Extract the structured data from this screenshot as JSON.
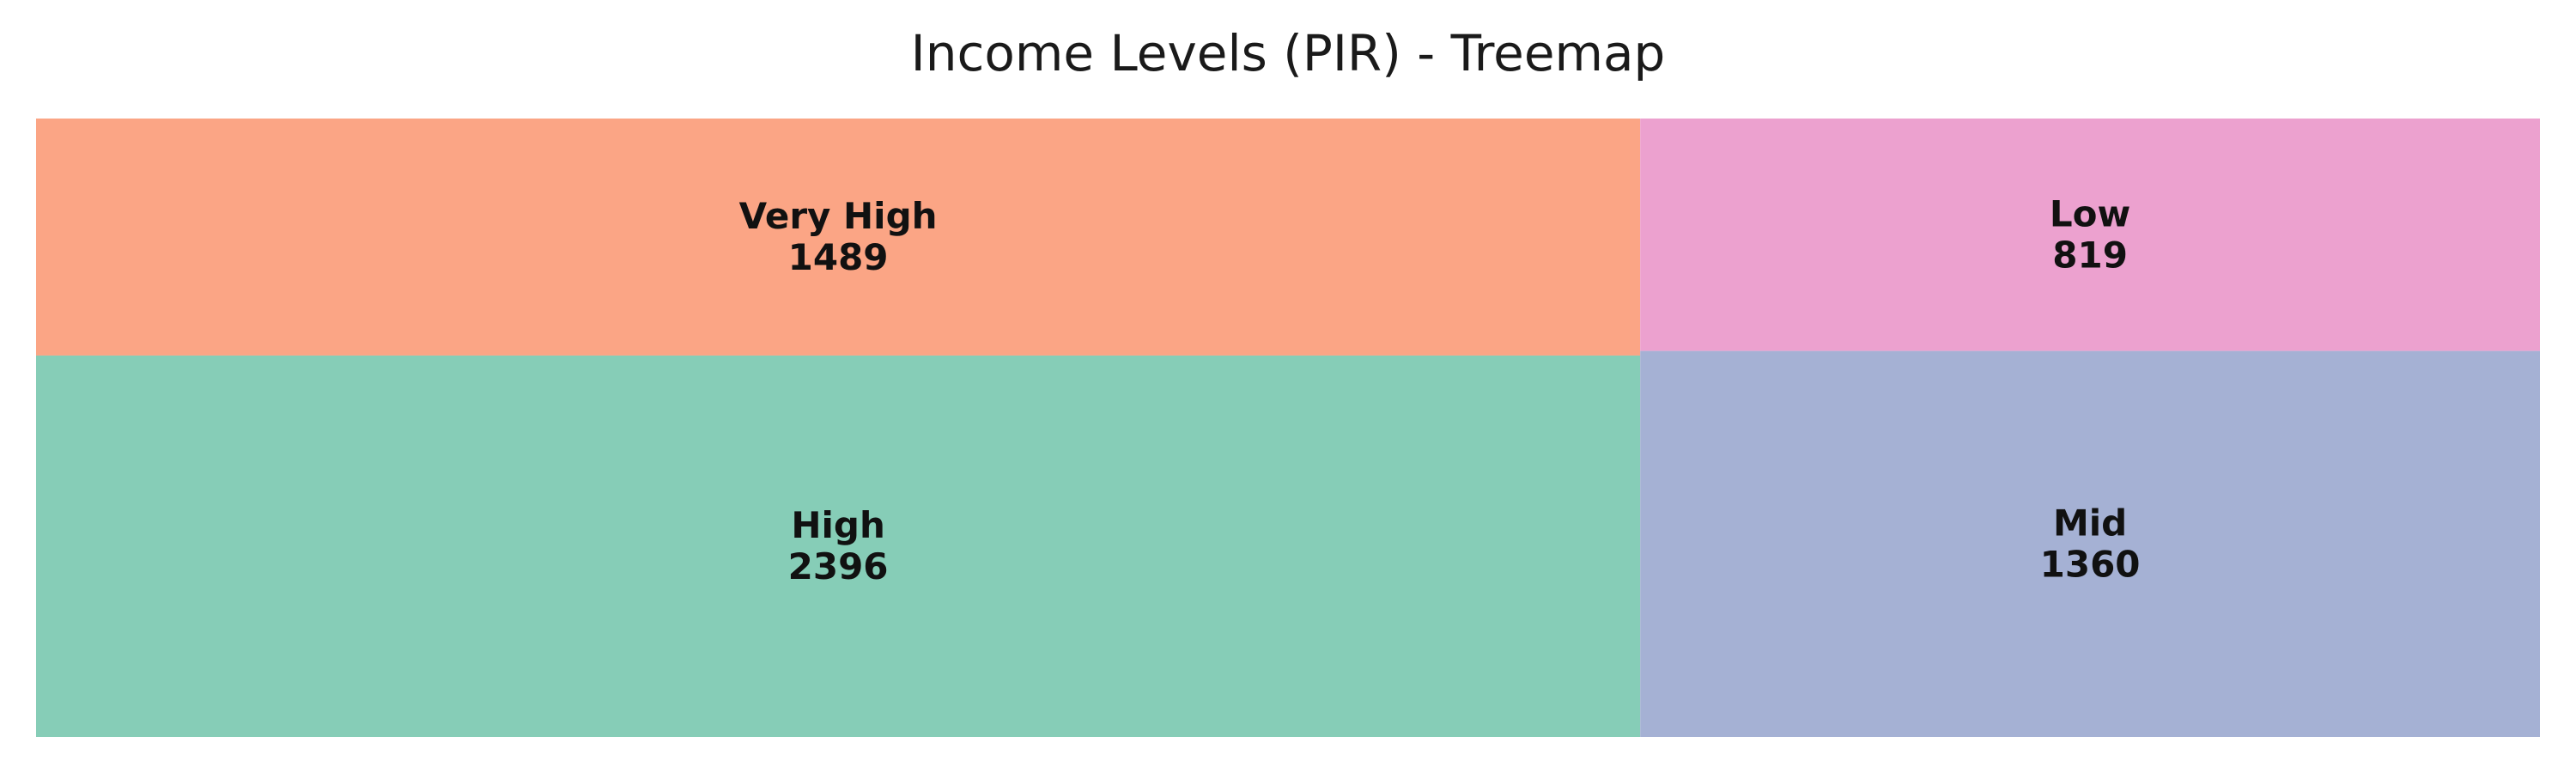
{
  "chart_data": {
    "type": "treemap",
    "title": "Income Levels (PIR) - Treemap",
    "items": [
      {
        "label": "High",
        "value": 2396,
        "color": "#86cdb7"
      },
      {
        "label": "Very High",
        "value": 1489,
        "color": "#fba585"
      },
      {
        "label": "Mid",
        "value": 1360,
        "color": "#a5b1d4"
      },
      {
        "label": "Low",
        "value": 819,
        "color": "#eca1cf"
      }
    ]
  }
}
